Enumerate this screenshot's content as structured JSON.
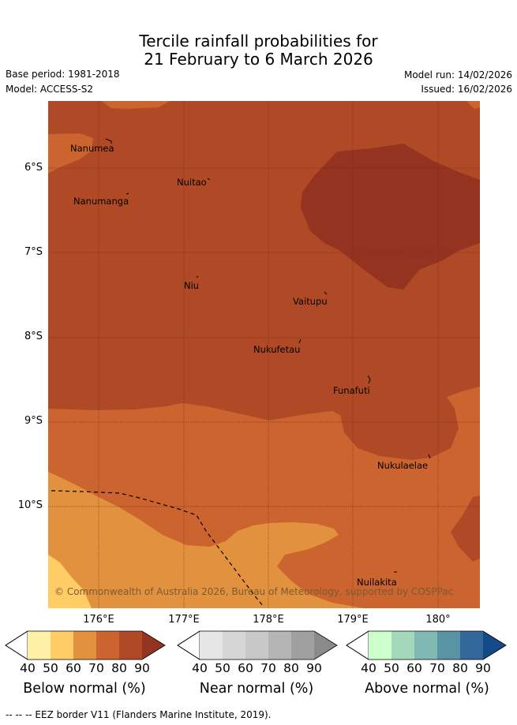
{
  "title": {
    "line1": "Tercile rainfall probabilities for",
    "line2": "21 February to 6 March 2026"
  },
  "meta": {
    "base_period": "Base period: 1981-2018",
    "model": "Model: ACCESS-S2",
    "model_run": "Model run: 14/02/2026",
    "issued": "Issued: 16/02/2026"
  },
  "map": {
    "latitude_labels": [
      "6°S",
      "7°S",
      "8°S",
      "9°S",
      "10°S"
    ],
    "longitude_labels": [
      "176°E",
      "177°E",
      "178°E",
      "179°E",
      "180°"
    ],
    "places": [
      "Nanumea",
      "Nuitao",
      "Nanumanga",
      "Niu",
      "Vaitupu",
      "Nukufetau",
      "Funafuti",
      "Nukulaelae",
      "Nuilakita"
    ],
    "copyright": "© Commonwealth of Australia 2026, Bureau of Meteorology, supported by COSPPac",
    "colors": {
      "below_60": "#ffcc66",
      "below_70": "#e2923e",
      "below_80": "#cc6430",
      "below_90": "#b04a26",
      "below_max": "#943420"
    }
  },
  "colorbars": [
    {
      "title": "Below normal (%)",
      "ticks": [
        "40",
        "50",
        "60",
        "70",
        "80",
        "90"
      ],
      "colors": [
        "#ffffff",
        "#fff0a8",
        "#ffcc66",
        "#e2923e",
        "#cc6430",
        "#b04a26",
        "#943420"
      ]
    },
    {
      "title": "Near normal (%)",
      "ticks": [
        "40",
        "50",
        "60",
        "70",
        "80",
        "90"
      ],
      "colors": [
        "#ffffff",
        "#e6e6e6",
        "#d6d6d6",
        "#c8c8c8",
        "#b5b5b5",
        "#a0a0a0",
        "#8a8a8a"
      ]
    },
    {
      "title": "Above normal (%)",
      "ticks": [
        "40",
        "50",
        "60",
        "70",
        "80",
        "90"
      ],
      "colors": [
        "#ffffff",
        "#ccffcc",
        "#a3d8bb",
        "#80b9b3",
        "#5a93a3",
        "#336699",
        "#134a87"
      ]
    }
  ],
  "footnote": "-- -- -- EEZ border V11 (Flanders Marine Institute, 2019)."
}
